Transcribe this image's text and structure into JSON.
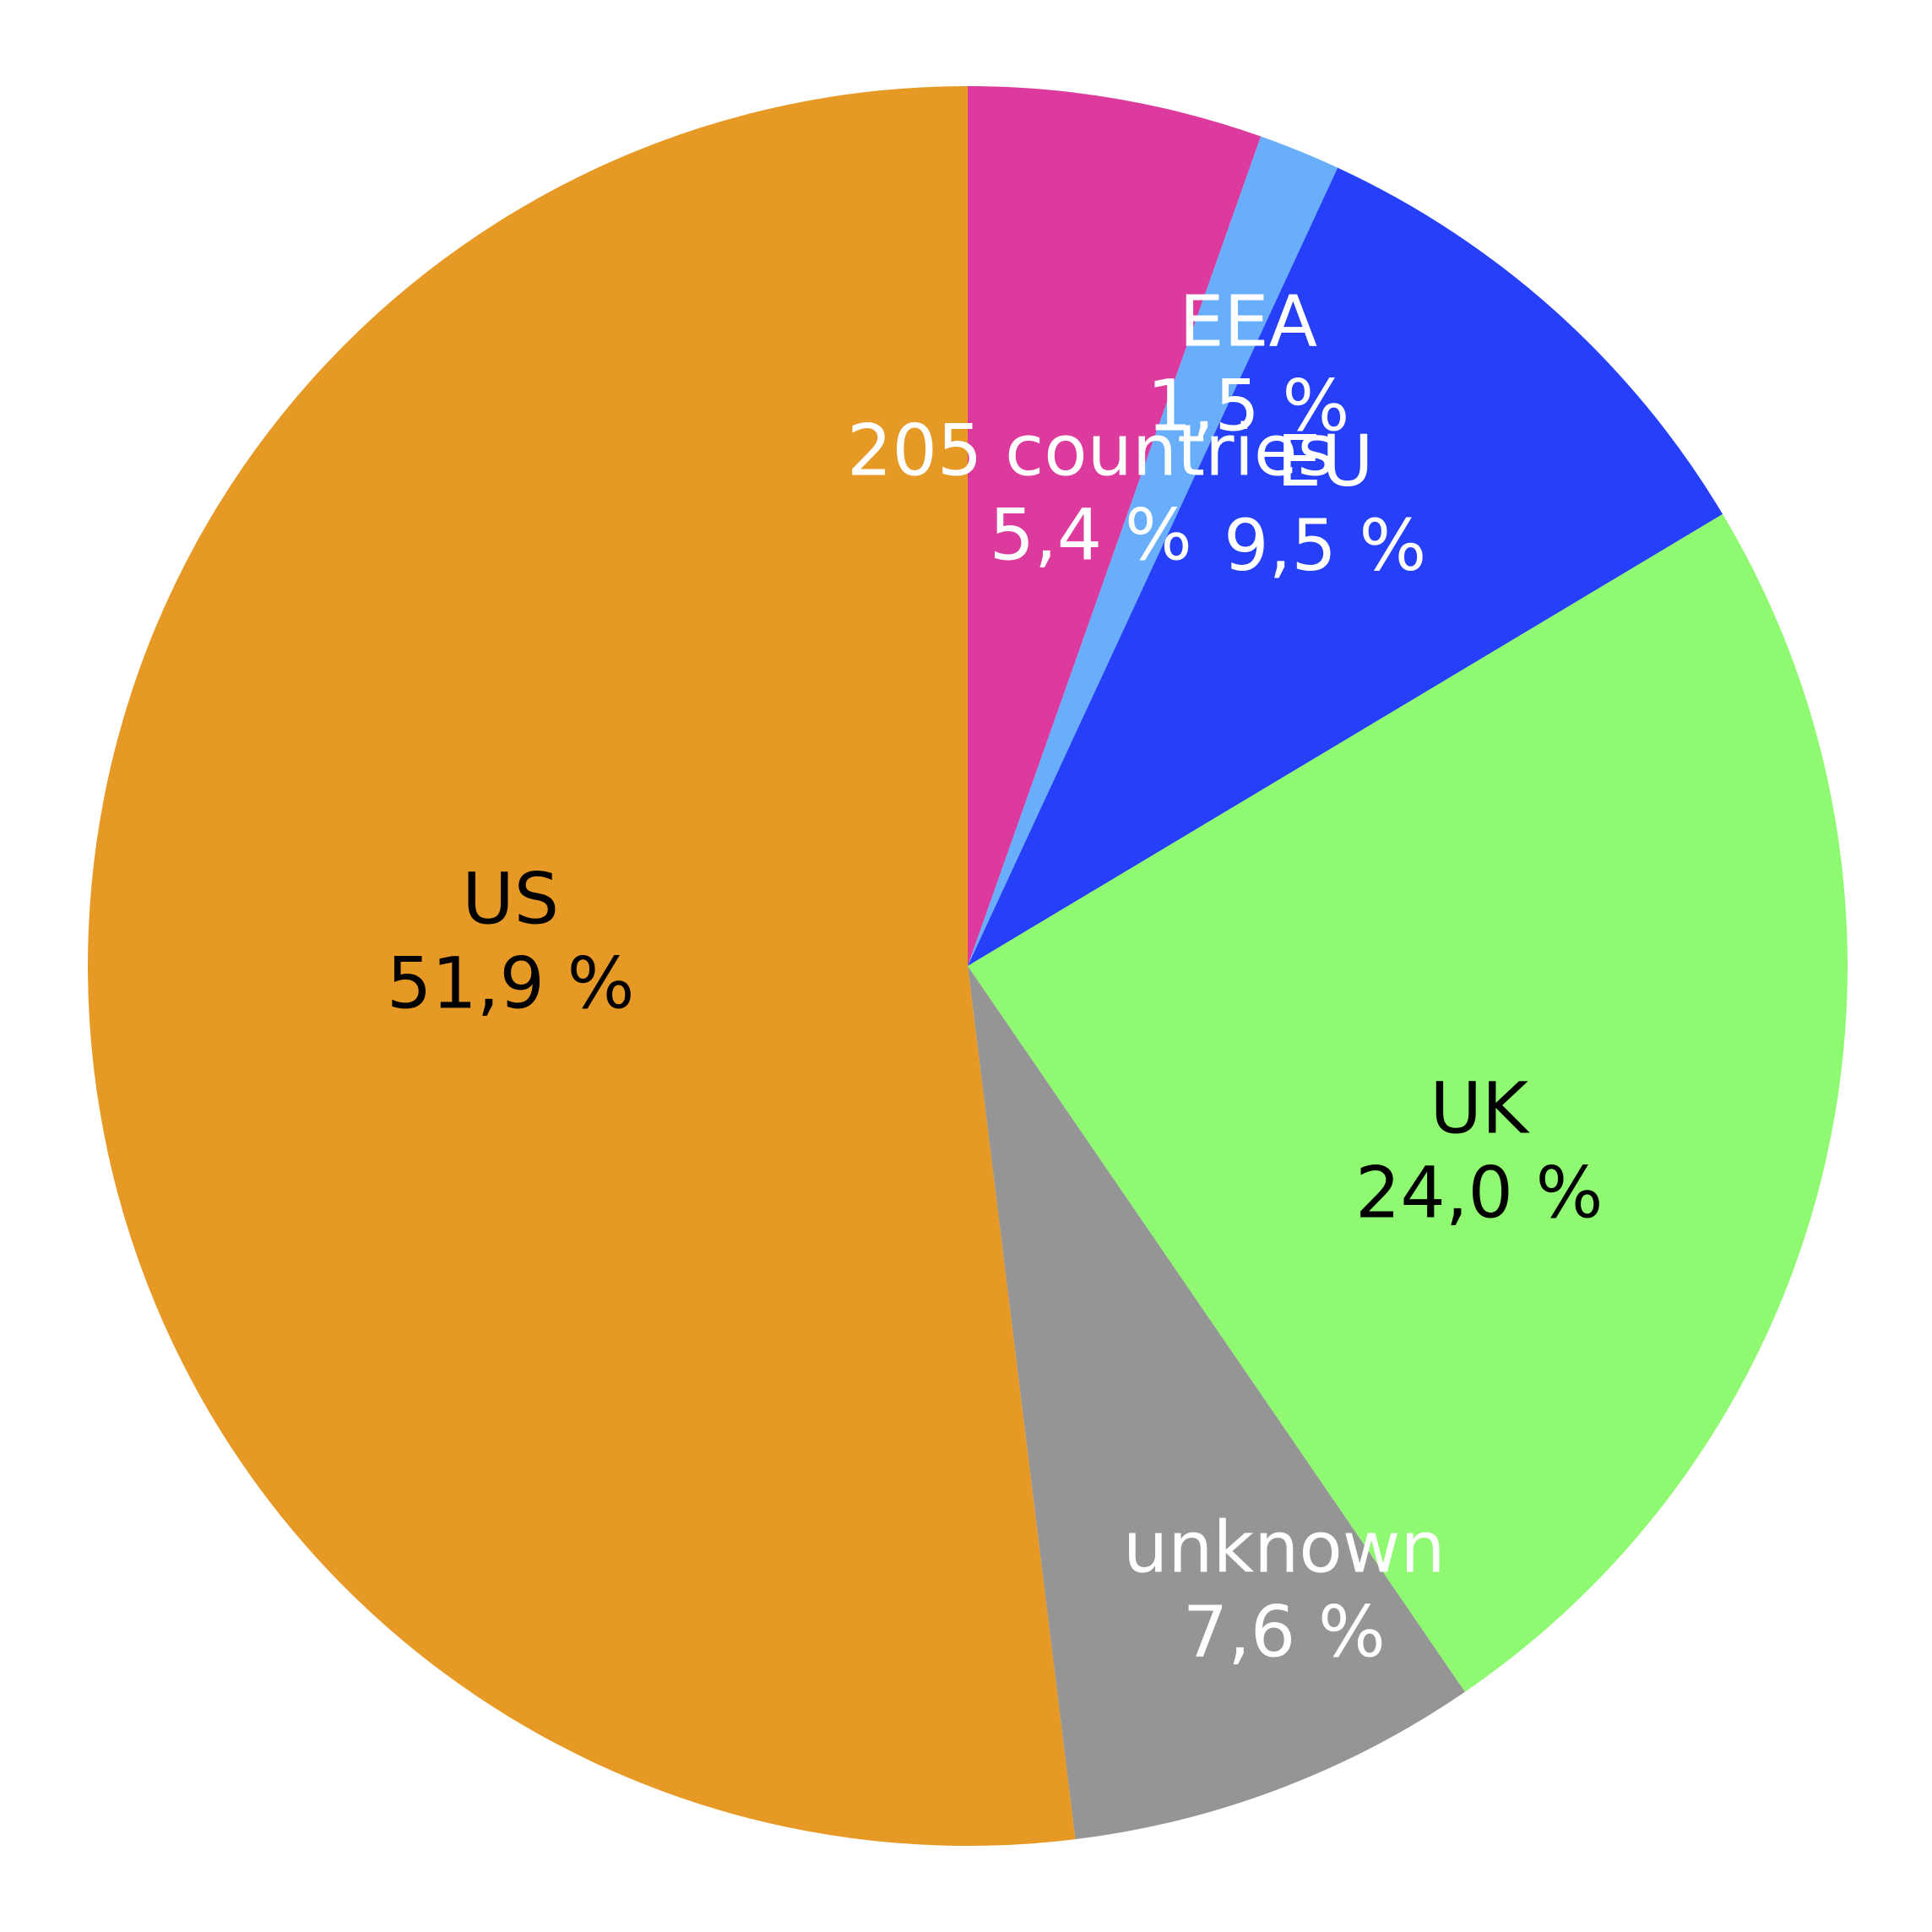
{
  "chart_data": {
    "type": "pie",
    "title": "",
    "start": "top",
    "direction": "clockwise",
    "legend": "none",
    "slices": [
      {
        "name": "205 countries",
        "value": 5.4,
        "value_label": "5,4 %",
        "color": "#dc3a9d",
        "label_color": "#ffffff"
      },
      {
        "name": "EEA",
        "value": 1.5,
        "value_label": "1,5 %",
        "color": "#68aefb",
        "label_color": "#ffffff"
      },
      {
        "name": "EU",
        "value": 9.5,
        "value_label": "9,5 %",
        "color": "#2540f8",
        "label_color": "#ffffff"
      },
      {
        "name": "UK",
        "value": 24.0,
        "value_label": "24,0 %",
        "color": "#8ffa71",
        "label_color": "#000000"
      },
      {
        "name": "unknown",
        "value": 7.6,
        "value_label": "7,6 %",
        "color": "#959595",
        "label_color": "#ffffff"
      },
      {
        "name": "US",
        "value": 51.9,
        "value_label": "51,9 %",
        "color": "#e79926",
        "label_color": "#000000"
      }
    ]
  }
}
